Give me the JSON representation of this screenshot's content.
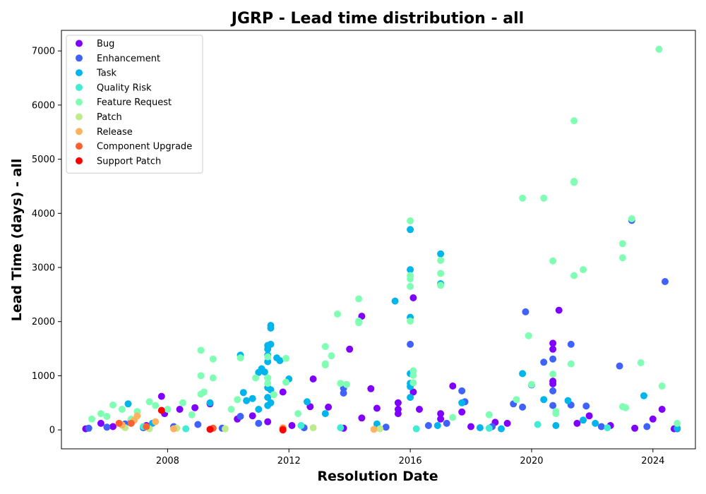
{
  "chart_data": {
    "type": "scatter",
    "title": "JGRP - Lead time distribution - all",
    "xlabel": "Resolution Date",
    "ylabel": "Lead Time (days) - all",
    "xlim": [
      2004.5,
      2025.4
    ],
    "ylim": [
      -350,
      7380
    ],
    "x_ticks": [
      2008,
      2012,
      2016,
      2020,
      2024
    ],
    "y_ticks": [
      0,
      1000,
      2000,
      3000,
      4000,
      5000,
      6000,
      7000
    ],
    "grid": false,
    "legend_position": "top-left",
    "series": [
      {
        "name": "Bug",
        "color": "#8000ff",
        "points": [
          [
            2005.3,
            20
          ],
          [
            2005.8,
            120
          ],
          [
            2006.2,
            60
          ],
          [
            2006.8,
            180
          ],
          [
            2007.3,
            80
          ],
          [
            2007.8,
            620
          ],
          [
            2007.9,
            300
          ],
          [
            2008.4,
            380
          ],
          [
            2008.9,
            410
          ],
          [
            2009.4,
            480
          ],
          [
            2010.3,
            200
          ],
          [
            2010.8,
            260
          ],
          [
            2011.3,
            150
          ],
          [
            2011.8,
            700
          ],
          [
            2012.1,
            80
          ],
          [
            2012.7,
            430
          ],
          [
            2012.8,
            940
          ],
          [
            2013.3,
            420
          ],
          [
            2013.8,
            30
          ],
          [
            2014.0,
            1490
          ],
          [
            2014.4,
            2100
          ],
          [
            2014.4,
            220
          ],
          [
            2014.7,
            760
          ],
          [
            2014.9,
            400
          ],
          [
            2015.6,
            500
          ],
          [
            2015.6,
            380
          ],
          [
            2015.6,
            300
          ],
          [
            2016.1,
            2440
          ],
          [
            2016.1,
            700
          ],
          [
            2016.3,
            380
          ],
          [
            2017.0,
            300
          ],
          [
            2017.0,
            200
          ],
          [
            2017.4,
            810
          ],
          [
            2017.7,
            330
          ],
          [
            2018.0,
            60
          ],
          [
            2018.8,
            140
          ],
          [
            2019.2,
            120
          ],
          [
            2020.7,
            1600
          ],
          [
            2020.7,
            1490
          ],
          [
            2020.7,
            900
          ],
          [
            2020.7,
            850
          ],
          [
            2020.9,
            2210
          ],
          [
            2021.5,
            120
          ],
          [
            2021.9,
            260
          ],
          [
            2022.6,
            80
          ],
          [
            2023.4,
            30
          ],
          [
            2024.0,
            200
          ],
          [
            2024.3,
            380
          ],
          [
            2024.7,
            20
          ]
        ]
      },
      {
        "name": "Enhancement",
        "color": "#4062fa",
        "points": [
          [
            2005.4,
            30
          ],
          [
            2006.0,
            50
          ],
          [
            2006.6,
            110
          ],
          [
            2007.2,
            40
          ],
          [
            2008.2,
            60
          ],
          [
            2009.0,
            100
          ],
          [
            2009.8,
            30
          ],
          [
            2010.4,
            250
          ],
          [
            2011.0,
            120
          ],
          [
            2012.5,
            40
          ],
          [
            2013.8,
            770
          ],
          [
            2013.8,
            680
          ],
          [
            2015.2,
            50
          ],
          [
            2016.0,
            1580
          ],
          [
            2016.6,
            80
          ],
          [
            2017.2,
            120
          ],
          [
            2017.7,
            720
          ],
          [
            2017.8,
            520
          ],
          [
            2018.7,
            60
          ],
          [
            2019.4,
            480
          ],
          [
            2019.7,
            420
          ],
          [
            2019.8,
            2180
          ],
          [
            2020.0,
            830
          ],
          [
            2020.4,
            1250
          ],
          [
            2020.7,
            1310
          ],
          [
            2020.7,
            720
          ],
          [
            2020.7,
            450
          ],
          [
            2021.3,
            1580
          ],
          [
            2021.3,
            460
          ],
          [
            2021.8,
            440
          ],
          [
            2022.3,
            60
          ],
          [
            2022.9,
            1180
          ],
          [
            2023.3,
            3870
          ],
          [
            2023.8,
            60
          ],
          [
            2024.4,
            2740
          ],
          [
            2024.8,
            20
          ]
        ]
      },
      {
        "name": "Task",
        "color": "#00b4ec",
        "points": [
          [
            2006.7,
            480
          ],
          [
            2007.5,
            120
          ],
          [
            2009.4,
            500
          ],
          [
            2010.4,
            1380
          ],
          [
            2010.5,
            690
          ],
          [
            2010.6,
            540
          ],
          [
            2010.8,
            580
          ],
          [
            2011.0,
            1060
          ],
          [
            2011.0,
            380
          ],
          [
            2011.1,
            1130
          ],
          [
            2011.2,
            1070
          ],
          [
            2011.3,
            1560
          ],
          [
            2011.3,
            1490
          ],
          [
            2011.3,
            1380
          ],
          [
            2011.3,
            1260
          ],
          [
            2011.3,
            960
          ],
          [
            2011.3,
            780
          ],
          [
            2011.3,
            600
          ],
          [
            2011.3,
            450
          ],
          [
            2011.4,
            1930
          ],
          [
            2011.4,
            1880
          ],
          [
            2011.4,
            1580
          ],
          [
            2011.4,
            740
          ],
          [
            2011.4,
            500
          ],
          [
            2011.6,
            1330
          ],
          [
            2011.7,
            1280
          ],
          [
            2012.0,
            940
          ],
          [
            2012.6,
            520
          ],
          [
            2013.2,
            300
          ],
          [
            2014.9,
            110
          ],
          [
            2015.5,
            2380
          ],
          [
            2016.0,
            3700
          ],
          [
            2016.0,
            2960
          ],
          [
            2016.0,
            2080
          ],
          [
            2016.0,
            1040
          ],
          [
            2016.0,
            860
          ],
          [
            2016.0,
            800
          ],
          [
            2016.0,
            600
          ],
          [
            2016.9,
            80
          ],
          [
            2017.0,
            3250
          ],
          [
            2017.0,
            2700
          ],
          [
            2017.7,
            500
          ],
          [
            2018.3,
            40
          ],
          [
            2019.0,
            20
          ],
          [
            2019.7,
            1040
          ],
          [
            2020.4,
            560
          ],
          [
            2020.8,
            80
          ],
          [
            2021.2,
            540
          ],
          [
            2021.7,
            180
          ],
          [
            2022.1,
            120
          ],
          [
            2023.7,
            630
          ],
          [
            2024.8,
            30
          ]
        ]
      },
      {
        "name": "Quality Risk",
        "color": "#40ecd4",
        "points": [
          [
            2007.2,
            60
          ],
          [
            2008.6,
            20
          ],
          [
            2012.4,
            80
          ],
          [
            2013.7,
            40
          ],
          [
            2016.2,
            20
          ],
          [
            2018.6,
            30
          ],
          [
            2020.2,
            100
          ],
          [
            2022.5,
            40
          ]
        ]
      },
      {
        "name": "Feature Request",
        "color": "#80ffb4",
        "points": [
          [
            2005.5,
            200
          ],
          [
            2005.8,
            300
          ],
          [
            2006.0,
            250
          ],
          [
            2006.2,
            460
          ],
          [
            2006.5,
            380
          ],
          [
            2006.8,
            200
          ],
          [
            2007.0,
            340
          ],
          [
            2007.4,
            520
          ],
          [
            2007.6,
            450
          ],
          [
            2008.0,
            380
          ],
          [
            2008.5,
            500
          ],
          [
            2008.8,
            280
          ],
          [
            2009.1,
            1470
          ],
          [
            2009.1,
            1000
          ],
          [
            2009.1,
            660
          ],
          [
            2009.2,
            700
          ],
          [
            2009.5,
            1310
          ],
          [
            2009.5,
            960
          ],
          [
            2010.1,
            380
          ],
          [
            2010.3,
            560
          ],
          [
            2010.4,
            1330
          ],
          [
            2010.9,
            960
          ],
          [
            2011.3,
            1350
          ],
          [
            2011.3,
            960
          ],
          [
            2011.3,
            860
          ],
          [
            2011.5,
            650
          ],
          [
            2011.9,
            880
          ],
          [
            2011.9,
            1320
          ],
          [
            2012.3,
            300
          ],
          [
            2013.2,
            1540
          ],
          [
            2013.2,
            1220
          ],
          [
            2013.2,
            1200
          ],
          [
            2013.4,
            1370
          ],
          [
            2013.6,
            2140
          ],
          [
            2013.7,
            860
          ],
          [
            2013.9,
            840
          ],
          [
            2014.3,
            2420
          ],
          [
            2014.3,
            2010
          ],
          [
            2014.3,
            1980
          ],
          [
            2016.0,
            3860
          ],
          [
            2016.0,
            2850
          ],
          [
            2016.0,
            2790
          ],
          [
            2016.0,
            2650
          ],
          [
            2016.0,
            2010
          ],
          [
            2016.1,
            1090
          ],
          [
            2016.1,
            1010
          ],
          [
            2016.1,
            870
          ],
          [
            2017.0,
            3130
          ],
          [
            2017.0,
            2890
          ],
          [
            2017.0,
            2670
          ],
          [
            2017.4,
            230
          ],
          [
            2018.6,
            280
          ],
          [
            2019.5,
            560
          ],
          [
            2019.7,
            4280
          ],
          [
            2019.9,
            1740
          ],
          [
            2020.0,
            840
          ],
          [
            2020.4,
            4280
          ],
          [
            2020.7,
            3120
          ],
          [
            2020.7,
            1030
          ],
          [
            2020.8,
            340
          ],
          [
            2020.8,
            300
          ],
          [
            2021.3,
            1220
          ],
          [
            2021.4,
            5710
          ],
          [
            2021.4,
            4590
          ],
          [
            2021.4,
            4570
          ],
          [
            2021.4,
            2850
          ],
          [
            2021.7,
            2960
          ],
          [
            2023.0,
            3440
          ],
          [
            2023.0,
            3180
          ],
          [
            2023.0,
            430
          ],
          [
            2023.1,
            410
          ],
          [
            2023.3,
            3900
          ],
          [
            2023.6,
            1240
          ],
          [
            2024.2,
            7030
          ],
          [
            2024.3,
            810
          ],
          [
            2024.8,
            120
          ]
        ]
      },
      {
        "name": "Patch",
        "color": "#c0eb8d",
        "points": [
          [
            2006.6,
            40
          ],
          [
            2007.4,
            20
          ],
          [
            2008.3,
            30
          ],
          [
            2009.9,
            20
          ],
          [
            2012.8,
            40
          ],
          [
            2015.0,
            20
          ]
        ]
      },
      {
        "name": "Release",
        "color": "#ffb360",
        "points": [
          [
            2006.5,
            90
          ],
          [
            2006.9,
            180
          ],
          [
            2007.0,
            260
          ],
          [
            2007.6,
            150
          ],
          [
            2008.2,
            20
          ],
          [
            2011.8,
            40
          ],
          [
            2014.8,
            10
          ]
        ]
      },
      {
        "name": "Component Upgrade",
        "color": "#ff6030",
        "points": [
          [
            2006.4,
            120
          ],
          [
            2006.8,
            120
          ],
          [
            2007.3,
            60
          ],
          [
            2009.5,
            30
          ],
          [
            2011.8,
            20
          ]
        ]
      },
      {
        "name": "Support Patch",
        "color": "#ff0000",
        "points": [
          [
            2007.8,
            360
          ],
          [
            2009.4,
            10
          ],
          [
            2011.8,
            0
          ]
        ]
      }
    ]
  }
}
